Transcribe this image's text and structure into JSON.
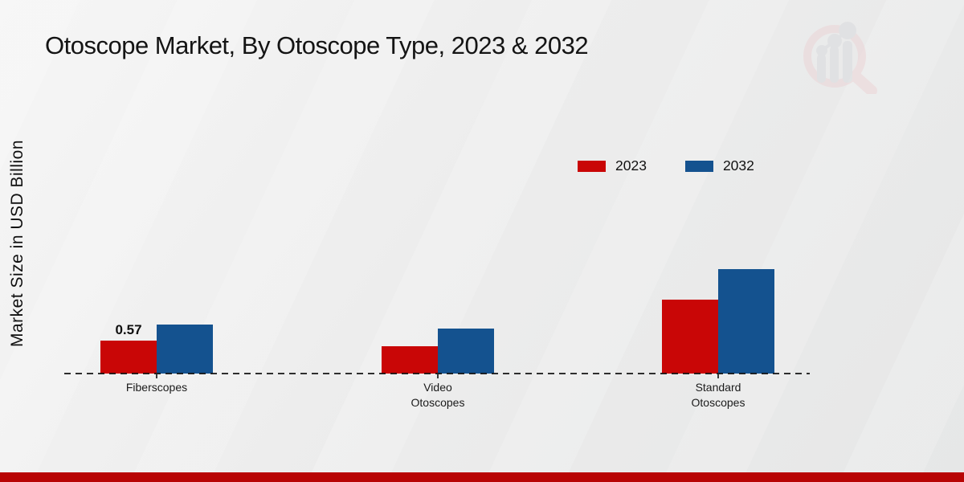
{
  "title": "Otoscope Market, By Otoscope Type, 2023 & 2032",
  "y_axis_label": "Market Size in USD Billion",
  "legend": {
    "items": [
      {
        "label": "2023",
        "color": "#c90606"
      },
      {
        "label": "2032",
        "color": "#14528f"
      }
    ]
  },
  "chart_data": {
    "type": "bar",
    "categories": [
      "Fiberscopes",
      "Video Otoscopes",
      "Standard Otoscopes"
    ],
    "category_label_lines": [
      [
        "Fiberscopes"
      ],
      [
        "Video",
        "Otoscopes"
      ],
      [
        "Standard",
        "Otoscopes"
      ]
    ],
    "series": [
      {
        "name": "2023",
        "color": "#c90606",
        "values": [
          0.57,
          0.47,
          1.28
        ],
        "data_labels": [
          "0.57",
          "",
          ""
        ]
      },
      {
        "name": "2032",
        "color": "#14528f",
        "values": [
          0.85,
          0.78,
          1.81
        ],
        "data_labels": [
          "",
          "",
          ""
        ]
      }
    ],
    "title": "Otoscope Market, By Otoscope Type, 2023 & 2032",
    "xlabel": "",
    "ylabel": "Market Size in USD Billion",
    "ylim": [
      0,
      2.0
    ],
    "grid": false,
    "axis_style": "dashed-baseline-only",
    "legend_position": "upper-right-inside"
  },
  "watermark": {
    "icon": "market-research-chart-magnifier-logo"
  },
  "footer": {
    "color": "#b80404"
  }
}
